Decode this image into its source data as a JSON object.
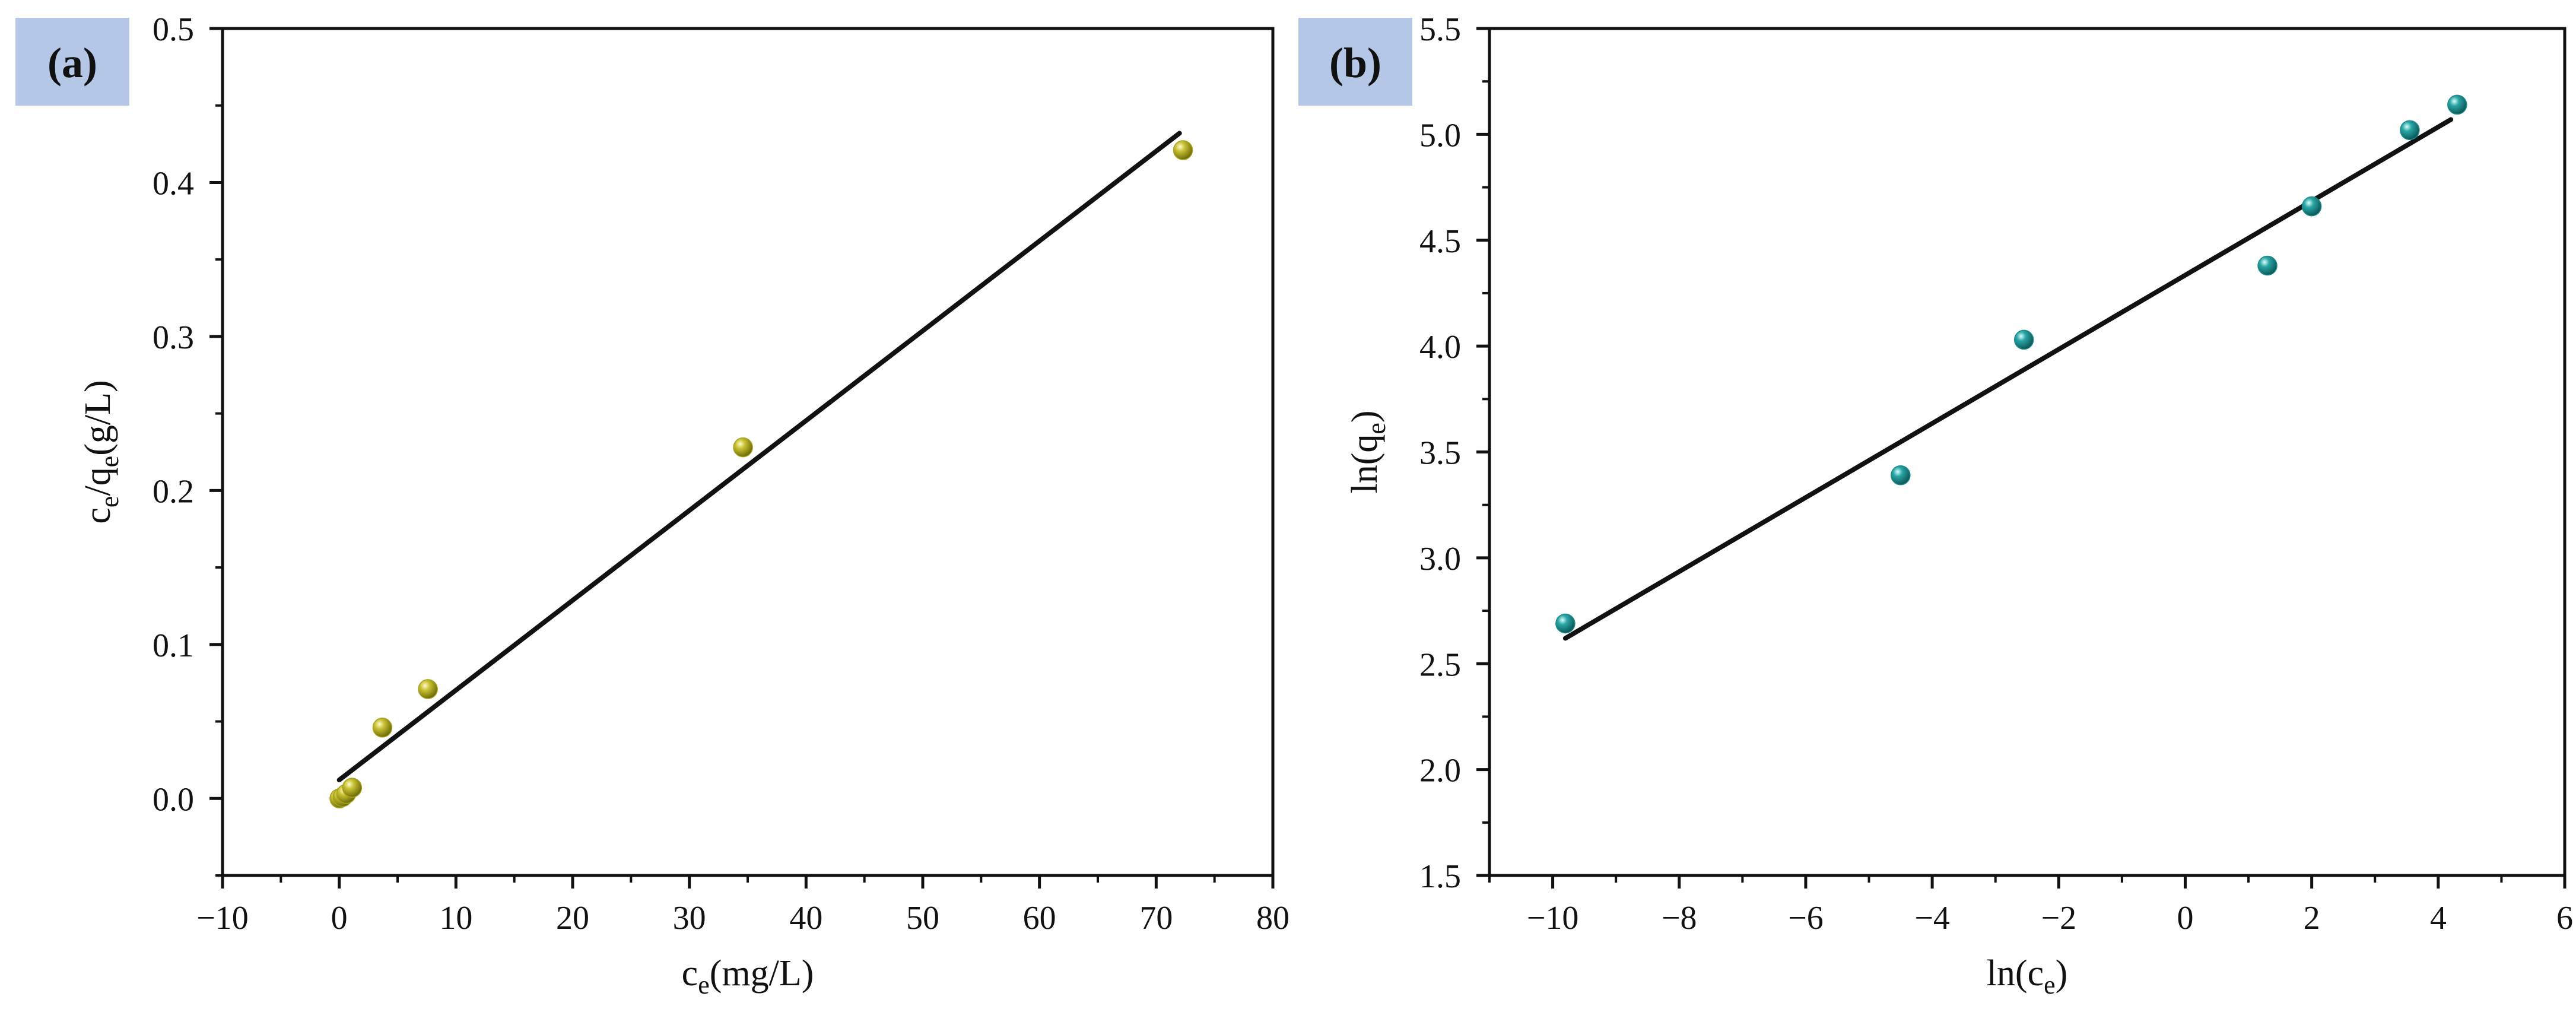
{
  "figure": {
    "background": "#ffffff",
    "badge_color": "#b4c7e7"
  },
  "chart_data": [
    {
      "type": "scatter",
      "panel_label": "(a)",
      "xlabel": {
        "base": "c",
        "sub": "e",
        "suffix": "(mg/L)"
      },
      "ylabel": {
        "parts": [
          {
            "t": "c"
          },
          {
            "t": "e",
            "sub": true
          },
          {
            "t": "/q"
          },
          {
            "t": "e",
            "sub": true
          },
          {
            "t": "(g/L)"
          }
        ]
      },
      "xlim": [
        -10,
        80
      ],
      "ylim": [
        -0.05,
        0.5
      ],
      "xticks": [
        -10,
        0,
        10,
        20,
        30,
        40,
        50,
        60,
        70,
        80
      ],
      "xtick_labels": [
        "−10",
        "0",
        "10",
        "20",
        "30",
        "40",
        "50",
        "60",
        "70",
        "80"
      ],
      "yticks": [
        0.0,
        0.1,
        0.2,
        0.3,
        0.4,
        0.5
      ],
      "ytick_labels": [
        "0.0",
        "0.1",
        "0.2",
        "0.3",
        "0.4",
        "0.5"
      ],
      "marker_color": "#a8a21a",
      "points": [
        {
          "x": 0.02,
          "y": 0.0
        },
        {
          "x": 0.3,
          "y": 0.001
        },
        {
          "x": 0.6,
          "y": 0.003
        },
        {
          "x": 1.1,
          "y": 0.007
        },
        {
          "x": 3.7,
          "y": 0.046
        },
        {
          "x": 7.6,
          "y": 0.071
        },
        {
          "x": 34.6,
          "y": 0.228
        },
        {
          "x": 72.3,
          "y": 0.421
        }
      ],
      "fit_line": {
        "x1": 0.0,
        "y1": 0.012,
        "x2": 72.0,
        "y2": 0.432
      }
    },
    {
      "type": "scatter",
      "panel_label": "(b)",
      "xlabel": {
        "parts": [
          {
            "t": "ln(c"
          },
          {
            "t": "e",
            "sub": true
          },
          {
            "t": ")"
          }
        ]
      },
      "ylabel": {
        "parts": [
          {
            "t": "ln(q"
          },
          {
            "t": "e",
            "sub": true
          },
          {
            "t": ")"
          }
        ]
      },
      "xlim": [
        -11,
        6
      ],
      "ylim": [
        1.5,
        5.5
      ],
      "xticks": [
        -10,
        -8,
        -6,
        -4,
        -2,
        0,
        2,
        4,
        6
      ],
      "xtick_labels": [
        "−10",
        "−8",
        "−6",
        "−4",
        "−2",
        "0",
        "2",
        "4",
        "6"
      ],
      "yticks": [
        1.5,
        2.0,
        2.5,
        3.0,
        3.5,
        4.0,
        4.5,
        5.0,
        5.5
      ],
      "ytick_labels": [
        "1.5",
        "2.0",
        "2.5",
        "3.0",
        "3.5",
        "4.0",
        "4.5",
        "5.0",
        "5.5"
      ],
      "marker_color": "#1e8c8c",
      "points": [
        {
          "x": -9.8,
          "y": 2.69
        },
        {
          "x": -4.5,
          "y": 3.39
        },
        {
          "x": -2.55,
          "y": 4.03
        },
        {
          "x": 1.3,
          "y": 4.38
        },
        {
          "x": 2.0,
          "y": 4.66
        },
        {
          "x": 3.55,
          "y": 5.02
        },
        {
          "x": 4.3,
          "y": 5.14
        }
      ],
      "fit_line": {
        "x1": -9.8,
        "y1": 2.62,
        "x2": 4.2,
        "y2": 5.07
      }
    }
  ]
}
